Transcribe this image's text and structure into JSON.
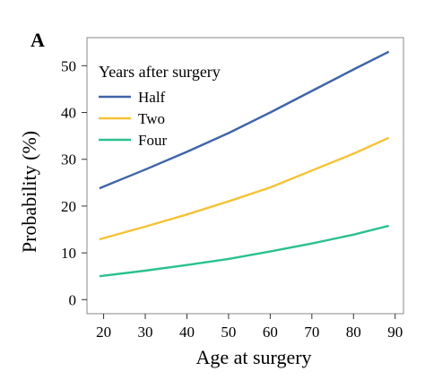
{
  "panel_label": "A",
  "chart_data": {
    "type": "line",
    "title": "",
    "xlabel": "Age at surgery",
    "ylabel": "Probability (%)",
    "xlim": [
      16,
      92
    ],
    "ylim": [
      -3,
      56
    ],
    "xticks": [
      20,
      30,
      40,
      50,
      60,
      70,
      80,
      90
    ],
    "yticks": [
      0,
      10,
      20,
      30,
      40,
      50
    ],
    "grid": false,
    "legend": {
      "title": "Years after surgery",
      "placement": "top-left"
    },
    "x": [
      19,
      30,
      40,
      50,
      60,
      70,
      80,
      88.5
    ],
    "series": [
      {
        "name": "Half",
        "color": "#3f64a8",
        "values": [
          23.8,
          27.8,
          31.6,
          35.6,
          40.0,
          44.6,
          49.2,
          53.0
        ]
      },
      {
        "name": "Two",
        "color": "#f6c235",
        "values": [
          12.9,
          15.6,
          18.2,
          21.0,
          24.0,
          27.6,
          31.2,
          34.6
        ]
      },
      {
        "name": "Four",
        "color": "#2ac18f",
        "values": [
          5.0,
          6.2,
          7.4,
          8.7,
          10.3,
          12.0,
          13.9,
          15.8
        ]
      }
    ]
  }
}
